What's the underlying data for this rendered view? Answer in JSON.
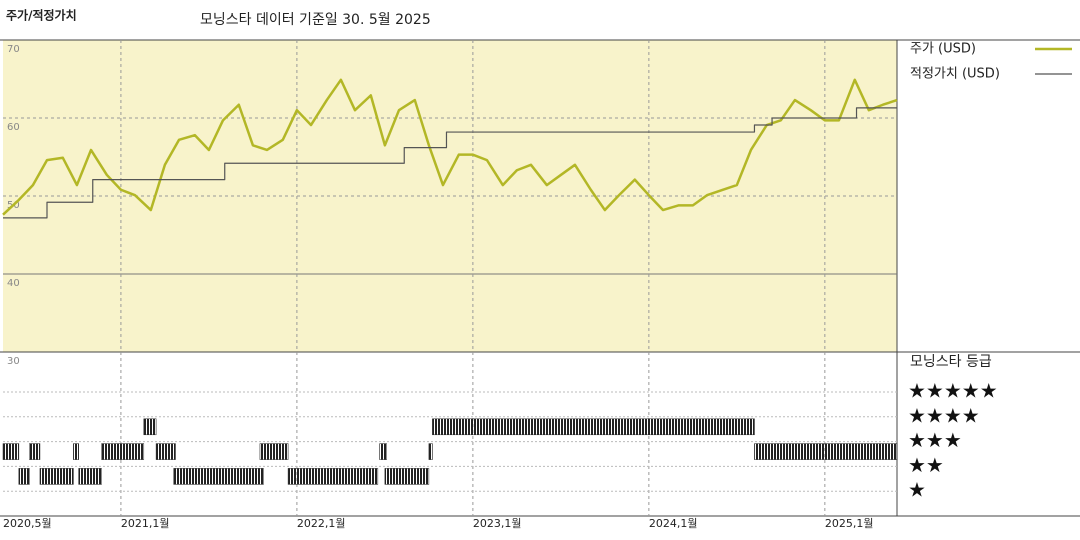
{
  "chart_data": {
    "type": "line",
    "title": "주가/적정가치",
    "subtitle": "모닝스타 데이터 기준일 30. 5월 2025",
    "xlim": [
      2020.33,
      2025.41
    ],
    "xticks": [
      {
        "value": 2020.33,
        "label": "2020,5월"
      },
      {
        "value": 2021,
        "label": "2021,1월"
      },
      {
        "value": 2022,
        "label": "2022,1월"
      },
      {
        "value": 2023,
        "label": "2023,1월"
      },
      {
        "value": 2024,
        "label": "2024,1월"
      },
      {
        "value": 2025,
        "label": "2025,1월"
      }
    ],
    "ylim": [
      30,
      70
    ],
    "yticks": [
      30,
      40,
      50,
      60,
      70
    ],
    "grid": true,
    "series": [
      {
        "name": "주가 (USD)",
        "color": "#b3b726",
        "step": false,
        "x": [
          2020.33,
          2020.42,
          2020.5,
          2020.58,
          2020.67,
          2020.75,
          2020.83,
          2020.92,
          2021.0,
          2021.08,
          2021.17,
          2021.25,
          2021.33,
          2021.42,
          2021.5,
          2021.58,
          2021.67,
          2021.75,
          2021.83,
          2021.92,
          2022.0,
          2022.08,
          2022.17,
          2022.25,
          2022.33,
          2022.42,
          2022.5,
          2022.58,
          2022.67,
          2022.75,
          2022.83,
          2022.92,
          2023.0,
          2023.08,
          2023.17,
          2023.25,
          2023.33,
          2023.42,
          2023.5,
          2023.58,
          2023.67,
          2023.75,
          2023.83,
          2023.92,
          2024.0,
          2024.08,
          2024.17,
          2024.25,
          2024.33,
          2024.42,
          2024.5,
          2024.58,
          2024.67,
          2024.75,
          2024.83,
          2024.92,
          2025.0,
          2025.08,
          2025.17,
          2025.25,
          2025.33,
          2025.41
        ],
        "values": [
          47.6,
          49.5,
          51.4,
          54.6,
          54.9,
          51.4,
          55.9,
          52.7,
          50.8,
          50.1,
          48.2,
          54,
          57.2,
          57.8,
          55.9,
          59.7,
          61.7,
          56.5,
          55.9,
          57.2,
          61,
          59.1,
          62.3,
          64.9,
          61,
          62.9,
          56.5,
          61,
          62.3,
          56.5,
          51.4,
          55.3,
          55.3,
          54.6,
          51.4,
          53.3,
          54,
          51.4,
          52.7,
          54,
          50.8,
          48.2,
          50.1,
          52.1,
          50.1,
          48.2,
          48.8,
          48.8,
          50.1,
          50.8,
          51.4,
          55.9,
          59.1,
          59.7,
          62.3,
          61,
          59.7,
          59.7,
          64.9,
          61,
          61.7,
          62.3
        ]
      },
      {
        "name": "적정가치 (USD)",
        "color": "#555555",
        "step": true,
        "x": [
          2020.33,
          2020.58,
          2020.84,
          2021.59,
          2022.61,
          2022.85,
          2024.6,
          2024.7,
          2025.18,
          2025.41
        ],
        "values": [
          47.2,
          49.2,
          52.1,
          54.2,
          56.2,
          58.2,
          59.1,
          60,
          61.3,
          61.3
        ]
      }
    ],
    "rating": {
      "title": "모닝스타 등급",
      "levels": [
        "★★★★★",
        "★★★★",
        "★★★",
        "★★",
        "★"
      ],
      "color": "#222222",
      "periods": [
        {
          "start": 2020.33,
          "end": 2020.42,
          "stars": 3
        },
        {
          "start": 2020.42,
          "end": 2020.48,
          "stars": 2
        },
        {
          "start": 2020.48,
          "end": 2020.54,
          "stars": 3
        },
        {
          "start": 2020.54,
          "end": 2020.73,
          "stars": 2
        },
        {
          "start": 2020.73,
          "end": 2020.76,
          "stars": 3
        },
        {
          "start": 2020.76,
          "end": 2020.89,
          "stars": 2
        },
        {
          "start": 2020.89,
          "end": 2021.13,
          "stars": 3
        },
        {
          "start": 2021.13,
          "end": 2021.2,
          "stars": 4
        },
        {
          "start": 2021.2,
          "end": 2021.31,
          "stars": 3
        },
        {
          "start": 2021.3,
          "end": 2021.81,
          "stars": 2
        },
        {
          "start": 2021.79,
          "end": 2021.95,
          "stars": 3
        },
        {
          "start": 2021.95,
          "end": 2022.46,
          "stars": 2
        },
        {
          "start": 2022.47,
          "end": 2022.51,
          "stars": 3
        },
        {
          "start": 2022.5,
          "end": 2022.75,
          "stars": 2
        },
        {
          "start": 2022.75,
          "end": 2022.77,
          "stars": 3
        },
        {
          "start": 2022.77,
          "end": 2024.6,
          "stars": 4
        },
        {
          "start": 2024.6,
          "end": 2025.41,
          "stars": 3
        }
      ]
    }
  }
}
